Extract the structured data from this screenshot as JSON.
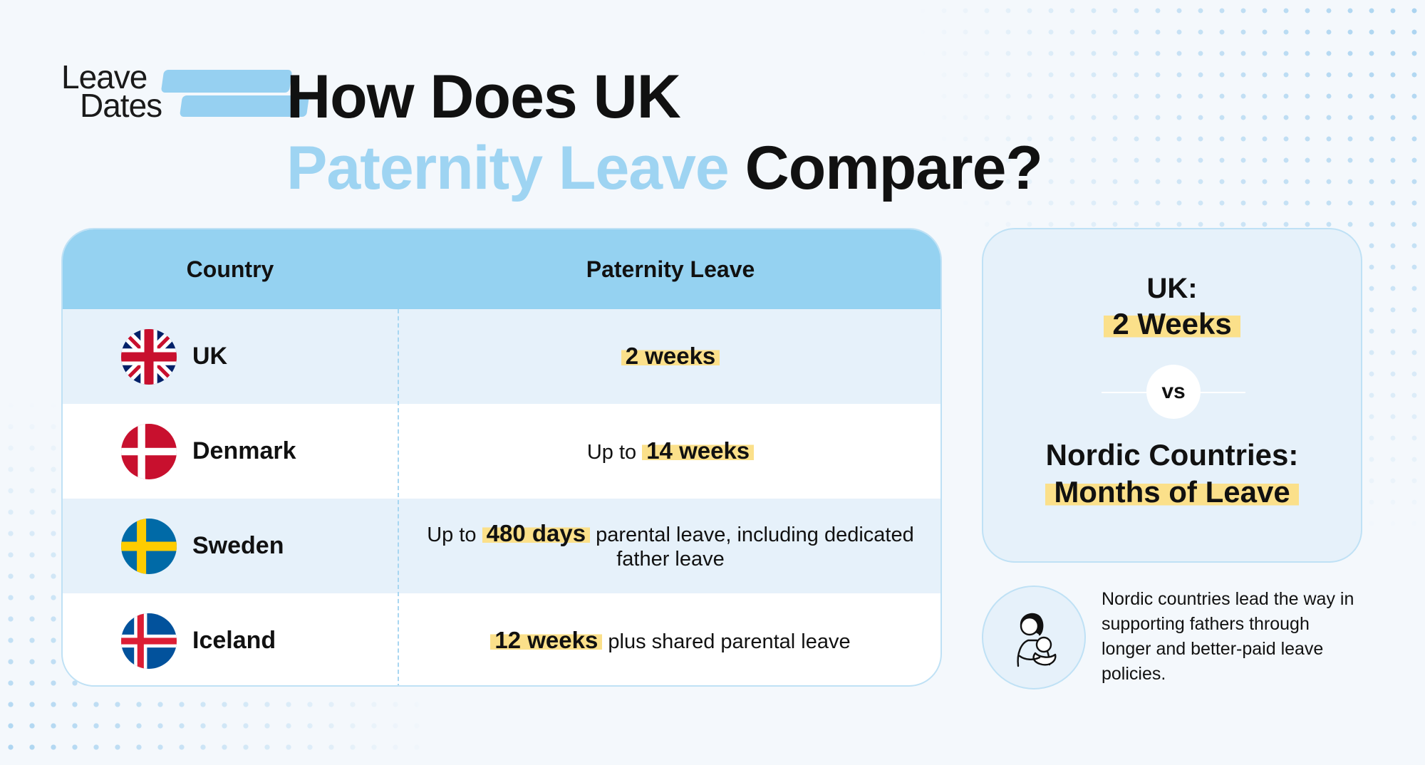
{
  "logo": {
    "line1": "Leave",
    "line2": "Dates"
  },
  "headline": {
    "line1": "How Does UK",
    "accent": "Paternity Leave",
    "rest": "Compare?"
  },
  "table": {
    "headers": [
      "Country",
      "Paternity Leave"
    ],
    "rows": [
      {
        "country": "UK",
        "flag": "uk-flag-icon",
        "pre": "",
        "highlight": "2 weeks",
        "post": ""
      },
      {
        "country": "Denmark",
        "flag": "denmark-flag-icon",
        "pre": "Up to",
        "highlight": "14 weeks",
        "post": ""
      },
      {
        "country": "Sweden",
        "flag": "sweden-flag-icon",
        "pre": "Up to",
        "highlight": "480 days",
        "post": "parental leave, including dedicated father leave"
      },
      {
        "country": "Iceland",
        "flag": "iceland-flag-icon",
        "pre": "",
        "highlight": "12 weeks",
        "post": "plus shared parental leave"
      }
    ]
  },
  "compare": {
    "uk_label": "UK:",
    "uk_value": "2 Weeks",
    "vs": "vs",
    "nordic_label": "Nordic Countries:",
    "nordic_value": "Months of Leave"
  },
  "note": {
    "icon": "parent-with-baby-icon",
    "text": "Nordic countries lead the way in supporting fathers through longer and better-paid leave policies."
  },
  "colors": {
    "accent_blue": "#9ed4f2",
    "header_blue": "#95d2f1",
    "row_alt": "#e6f1fa",
    "highlight_yellow": "#fbe08a"
  }
}
